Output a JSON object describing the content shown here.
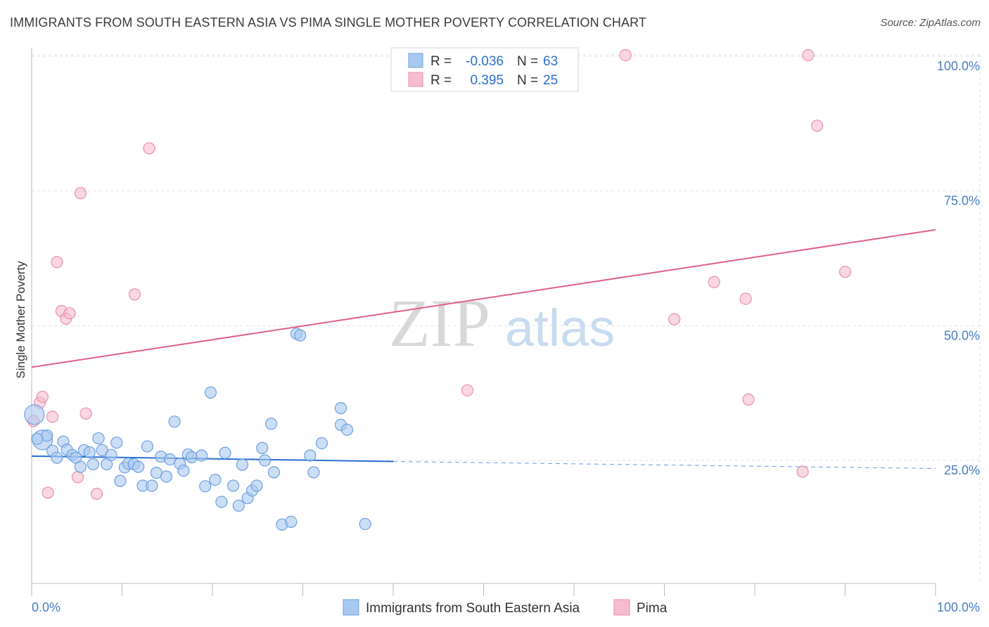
{
  "title": "IMMIGRANTS FROM SOUTH EASTERN ASIA VS PIMA SINGLE MOTHER POVERTY CORRELATION CHART",
  "source": "Source: ZipAtlas.com",
  "watermark": {
    "zip": "ZIP",
    "atlas": "atlas"
  },
  "colors": {
    "blue_fill": "#a9c8f0",
    "blue_stroke": "#6f9fe0",
    "blue_line": "#2a6fd0",
    "pink_fill": "#f7bccd",
    "pink_stroke": "#e890ab",
    "pink_line": "#e0608a",
    "tick_text": "#4a7cc4",
    "grid": "#e2e2e2"
  },
  "legend": {
    "rows": [
      {
        "r_label": "R =",
        "r_value": "-0.036",
        "n_label": "N =",
        "n_value": "63"
      },
      {
        "r_label": "R =",
        "r_value": "0.395",
        "n_label": "N =",
        "n_value": "25"
      }
    ]
  },
  "chart_data": {
    "type": "scatter",
    "title": "IMMIGRANTS FROM SOUTH EASTERN ASIA VS PIMA SINGLE MOTHER POVERTY CORRELATION CHART",
    "xlabel": "",
    "ylabel": "Single Mother Poverty",
    "xlim": [
      0,
      100
    ],
    "ylim": [
      0,
      102
    ],
    "x_tick_labels": [
      "0.0%",
      "100.0%"
    ],
    "y_ticks": [
      25,
      50,
      75,
      100
    ],
    "y_tick_labels": [
      "25.0%",
      "50.0%",
      "75.0%",
      "100.0%"
    ],
    "grid": true,
    "legend_position": "top-center",
    "series": [
      {
        "name": "Immigrants from South Eastern Asia",
        "color": "#a9c8f0",
        "r": -0.036,
        "n": 63,
        "trend": {
          "x0": 0,
          "y0": 25.8,
          "x1": 40,
          "y1": 24.8,
          "dashed_to_x": 100,
          "dashed_y": 23.5
        },
        "points": [
          {
            "x": 0.3,
            "y": 33.5,
            "big": true
          },
          {
            "x": 1.2,
            "y": 28.8,
            "big": true
          },
          {
            "x": 1.7,
            "y": 29.6
          },
          {
            "x": 2.3,
            "y": 26.8
          },
          {
            "x": 2.8,
            "y": 25.5
          },
          {
            "x": 3.5,
            "y": 28.5
          },
          {
            "x": 3.9,
            "y": 27.0
          },
          {
            "x": 4.5,
            "y": 26.0
          },
          {
            "x": 4.9,
            "y": 25.5
          },
          {
            "x": 5.4,
            "y": 23.8
          },
          {
            "x": 5.8,
            "y": 26.9
          },
          {
            "x": 6.4,
            "y": 26.5
          },
          {
            "x": 6.8,
            "y": 24.3
          },
          {
            "x": 7.4,
            "y": 29.1
          },
          {
            "x": 7.8,
            "y": 26.9
          },
          {
            "x": 8.3,
            "y": 24.3
          },
          {
            "x": 8.8,
            "y": 26.0
          },
          {
            "x": 9.4,
            "y": 28.3
          },
          {
            "x": 9.8,
            "y": 21.2
          },
          {
            "x": 10.3,
            "y": 23.7
          },
          {
            "x": 10.7,
            "y": 24.4
          },
          {
            "x": 11.3,
            "y": 24.3
          },
          {
            "x": 11.8,
            "y": 23.8
          },
          {
            "x": 12.3,
            "y": 20.3
          },
          {
            "x": 12.8,
            "y": 27.6
          },
          {
            "x": 13.3,
            "y": 20.3
          },
          {
            "x": 13.8,
            "y": 22.7
          },
          {
            "x": 14.3,
            "y": 25.7
          },
          {
            "x": 14.9,
            "y": 22.0
          },
          {
            "x": 15.3,
            "y": 25.2
          },
          {
            "x": 15.8,
            "y": 32.2
          },
          {
            "x": 16.4,
            "y": 24.4
          },
          {
            "x": 16.8,
            "y": 23.1
          },
          {
            "x": 17.3,
            "y": 26.1
          },
          {
            "x": 17.7,
            "y": 25.6
          },
          {
            "x": 18.8,
            "y": 25.9
          },
          {
            "x": 19.2,
            "y": 20.2
          },
          {
            "x": 19.8,
            "y": 37.6
          },
          {
            "x": 20.3,
            "y": 21.4
          },
          {
            "x": 21.0,
            "y": 17.3
          },
          {
            "x": 21.4,
            "y": 26.4
          },
          {
            "x": 22.3,
            "y": 20.3
          },
          {
            "x": 22.9,
            "y": 16.6
          },
          {
            "x": 23.3,
            "y": 24.2
          },
          {
            "x": 23.9,
            "y": 18.0
          },
          {
            "x": 24.4,
            "y": 19.4
          },
          {
            "x": 24.9,
            "y": 20.3
          },
          {
            "x": 25.5,
            "y": 27.3
          },
          {
            "x": 25.8,
            "y": 25.0
          },
          {
            "x": 26.5,
            "y": 31.8
          },
          {
            "x": 26.8,
            "y": 22.8
          },
          {
            "x": 27.7,
            "y": 13.1
          },
          {
            "x": 28.7,
            "y": 13.6
          },
          {
            "x": 29.3,
            "y": 48.5
          },
          {
            "x": 29.7,
            "y": 48.2
          },
          {
            "x": 30.8,
            "y": 25.9
          },
          {
            "x": 31.2,
            "y": 22.8
          },
          {
            "x": 32.1,
            "y": 28.2
          },
          {
            "x": 34.2,
            "y": 34.7
          },
          {
            "x": 34.2,
            "y": 31.6
          },
          {
            "x": 34.9,
            "y": 30.7
          },
          {
            "x": 36.9,
            "y": 13.2
          },
          {
            "x": 0.6,
            "y": 29.0
          }
        ]
      },
      {
        "name": "Pima",
        "color": "#f7bccd",
        "r": 0.395,
        "n": 25,
        "trend": {
          "x0": 0,
          "y0": 42.3,
          "x1": 100,
          "y1": 67.8
        },
        "points": [
          {
            "x": 0.2,
            "y": 32.3
          },
          {
            "x": 0.9,
            "y": 35.7
          },
          {
            "x": 1.2,
            "y": 36.8
          },
          {
            "x": 1.8,
            "y": 19.0
          },
          {
            "x": 2.3,
            "y": 33.1
          },
          {
            "x": 2.8,
            "y": 61.8
          },
          {
            "x": 3.3,
            "y": 52.7
          },
          {
            "x": 3.8,
            "y": 51.3
          },
          {
            "x": 4.2,
            "y": 52.3
          },
          {
            "x": 5.1,
            "y": 21.9
          },
          {
            "x": 5.4,
            "y": 74.6
          },
          {
            "x": 6.0,
            "y": 33.7
          },
          {
            "x": 7.2,
            "y": 18.8
          },
          {
            "x": 11.4,
            "y": 55.8
          },
          {
            "x": 13.0,
            "y": 82.9
          },
          {
            "x": 48.2,
            "y": 38.0
          },
          {
            "x": 65.7,
            "y": 100.2
          },
          {
            "x": 71.1,
            "y": 51.2
          },
          {
            "x": 75.5,
            "y": 58.1
          },
          {
            "x": 79.0,
            "y": 55.0
          },
          {
            "x": 79.3,
            "y": 36.3
          },
          {
            "x": 85.3,
            "y": 22.9
          },
          {
            "x": 85.9,
            "y": 100.2
          },
          {
            "x": 86.9,
            "y": 87.1
          },
          {
            "x": 90.0,
            "y": 60.0
          }
        ]
      }
    ]
  }
}
